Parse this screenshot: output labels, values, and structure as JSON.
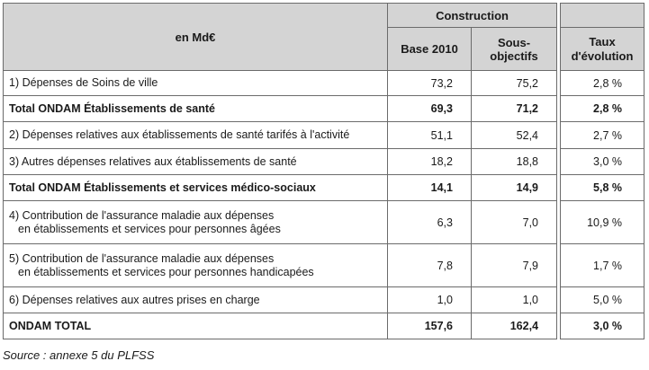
{
  "table": {
    "unit_header": "en Md€",
    "construction_header": "Construction",
    "base_header": "Base 2010",
    "sous_header": "Sous-objectifs",
    "taux_header_line1": "Taux",
    "taux_header_line2": "d'évolution",
    "rows": [
      {
        "label_line1": "1) Dépenses de Soins de ville",
        "label_line2": "",
        "base": "73,2",
        "sous": "75,2",
        "taux": "2,8 %",
        "bold": false
      },
      {
        "label_line1": "Total ONDAM Établissements de santé",
        "label_line2": "",
        "base": "69,3",
        "sous": "71,2",
        "taux": "2,8 %",
        "bold": true
      },
      {
        "label_line1": "2) Dépenses relatives aux établissements de santé tarifés à l'activité",
        "label_line2": "",
        "base": "51,1",
        "sous": "52,4",
        "taux": "2,7 %",
        "bold": false
      },
      {
        "label_line1": "3) Autres dépenses relatives aux établissements de santé",
        "label_line2": "",
        "base": "18,2",
        "sous": "18,8",
        "taux": "3,0 %",
        "bold": false
      },
      {
        "label_line1": "Total ONDAM Établissements et services médico-sociaux",
        "label_line2": "",
        "base": "14,1",
        "sous": "14,9",
        "taux": "5,8 %",
        "bold": true
      },
      {
        "label_line1": "4) Contribution de l'assurance maladie aux dépenses",
        "label_line2": "en établissements et services pour personnes âgées",
        "base": "6,3",
        "sous": "7,0",
        "taux": "10,9 %",
        "bold": false
      },
      {
        "label_line1": "5) Contribution de l'assurance maladie aux dépenses",
        "label_line2": "en établissements et services pour personnes handicapées",
        "base": "7,8",
        "sous": "7,9",
        "taux": "1,7 %",
        "bold": false
      },
      {
        "label_line1": "6) Dépenses relatives aux autres prises en charge",
        "label_line2": "",
        "base": "1,0",
        "sous": "1,0",
        "taux": "5,0 %",
        "bold": false
      },
      {
        "label_line1": "ONDAM TOTAL",
        "label_line2": "",
        "base": "157,6",
        "sous": "162,4",
        "taux": "3,0 %",
        "bold": true
      }
    ]
  },
  "source": "Source : annexe 5 du PLFSS"
}
